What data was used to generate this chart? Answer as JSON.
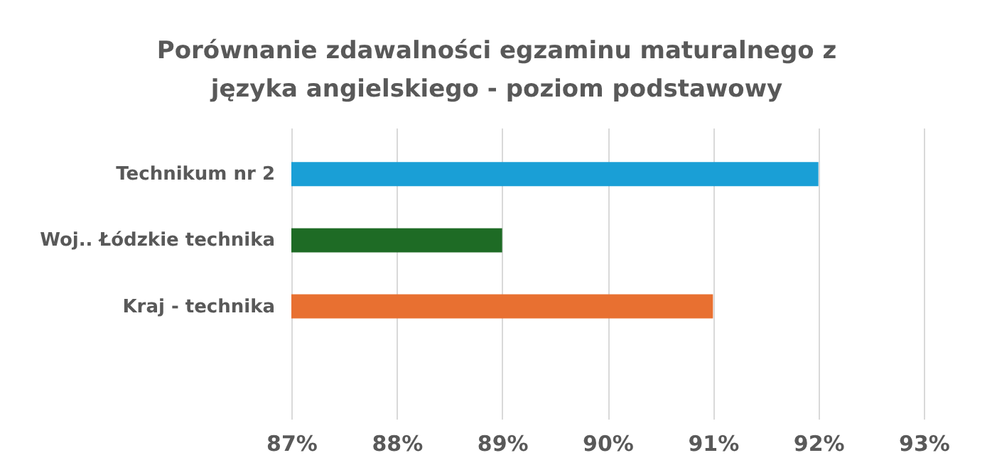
{
  "chart_data": {
    "type": "bar",
    "orientation": "horizontal",
    "title": "Porównanie zdawalności egzaminu maturalnego z języka angielskiego - poziom podstawowy",
    "categories": [
      "Technikum nr 2",
      "Woj.. Łódzkie technika",
      "Kraj - technika",
      null
    ],
    "values": [
      92,
      89,
      91,
      null
    ],
    "colors": [
      "#1a9fd6",
      "#1e6b25",
      "#e87031",
      null
    ],
    "xlim": [
      87,
      93
    ],
    "xticks": [
      {
        "value": 87,
        "label": "87%"
      },
      {
        "value": 88,
        "label": "88%"
      },
      {
        "value": 89,
        "label": "89%"
      },
      {
        "value": 90,
        "label": "90%"
      },
      {
        "value": 91,
        "label": "91%"
      },
      {
        "value": 92,
        "label": "92%"
      },
      {
        "value": 93,
        "label": "93%"
      }
    ],
    "grid": "x"
  }
}
